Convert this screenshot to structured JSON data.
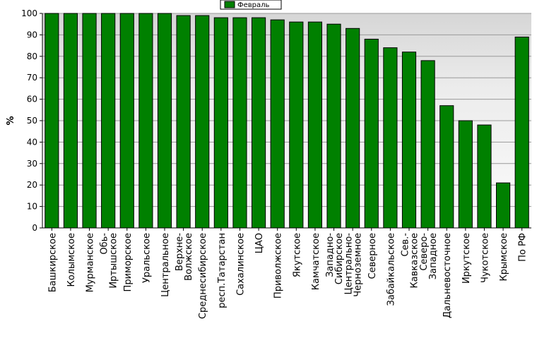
{
  "chart_data": {
    "type": "bar",
    "title": "",
    "xlabel": "",
    "ylabel": "%",
    "ylim": [
      0,
      100
    ],
    "yticks": [
      0,
      10,
      20,
      30,
      40,
      50,
      60,
      70,
      80,
      90,
      100
    ],
    "grid": true,
    "legend_position": "top-center",
    "categories": [
      "Башкирское",
      "Колымское",
      "Мурманское",
      "Обь-Иртышское",
      "Приморское",
      "Уральское",
      "Центральное",
      "Верхне-Волжское",
      "Среднесибирское",
      "респ.Татарстан",
      "Сахалинское",
      "ЦАО",
      "Приволжское",
      "Якутское",
      "Камчатское",
      "Западно-Сибирское",
      "Центрально-Черноземное",
      "Северное",
      "Забайкальское",
      "Сев.-Кавказское",
      "Северо-Западное",
      "Дальневосточное",
      "Иркутское",
      "Чукотское",
      "Крымское",
      "По РФ"
    ],
    "series": [
      {
        "name": "Февраль",
        "color": "#008000",
        "values": [
          100,
          100,
          100,
          100,
          100,
          100,
          100,
          99,
          99,
          98,
          98,
          98,
          97,
          96,
          96,
          95,
          93,
          88,
          84,
          82,
          78,
          57,
          50,
          48,
          21,
          89
        ]
      }
    ]
  }
}
